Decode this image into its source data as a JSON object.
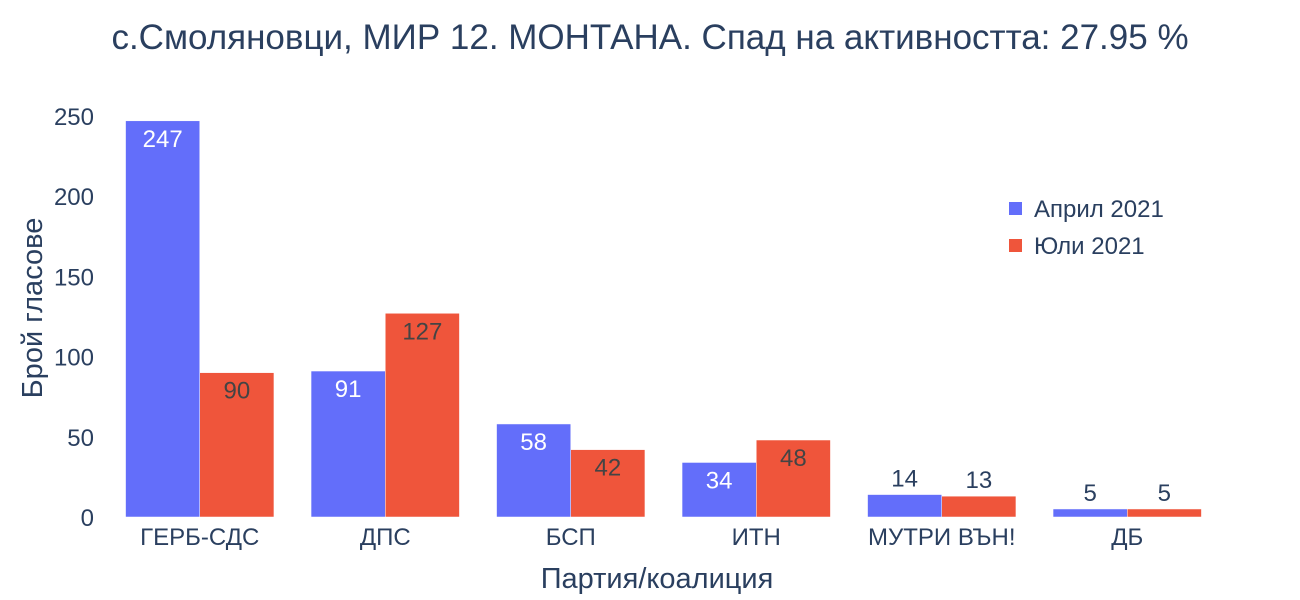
{
  "chart_data": {
    "type": "bar",
    "title": "с.Смоляновци, МИР 12. МОНТАНА. Спад на активността: 27.95 %",
    "xlabel": "Партия/коалиция",
    "ylabel": "Брой гласове",
    "categories": [
      "ГЕРБ-СДС",
      "ДПС",
      "БСП",
      "ИТН",
      "МУТРИ ВЪН!",
      "ДБ"
    ],
    "series": [
      {
        "name": "Април 2021",
        "color": "#636efa",
        "values": [
          247,
          91,
          58,
          34,
          14,
          5
        ]
      },
      {
        "name": "Юли 2021",
        "color": "#ef553b",
        "values": [
          90,
          127,
          42,
          48,
          13,
          5
        ]
      }
    ],
    "ylim": [
      0,
      250
    ],
    "yticks": [
      0,
      50,
      100,
      150,
      200,
      250
    ],
    "grid": false,
    "legend_position": "top-right"
  }
}
